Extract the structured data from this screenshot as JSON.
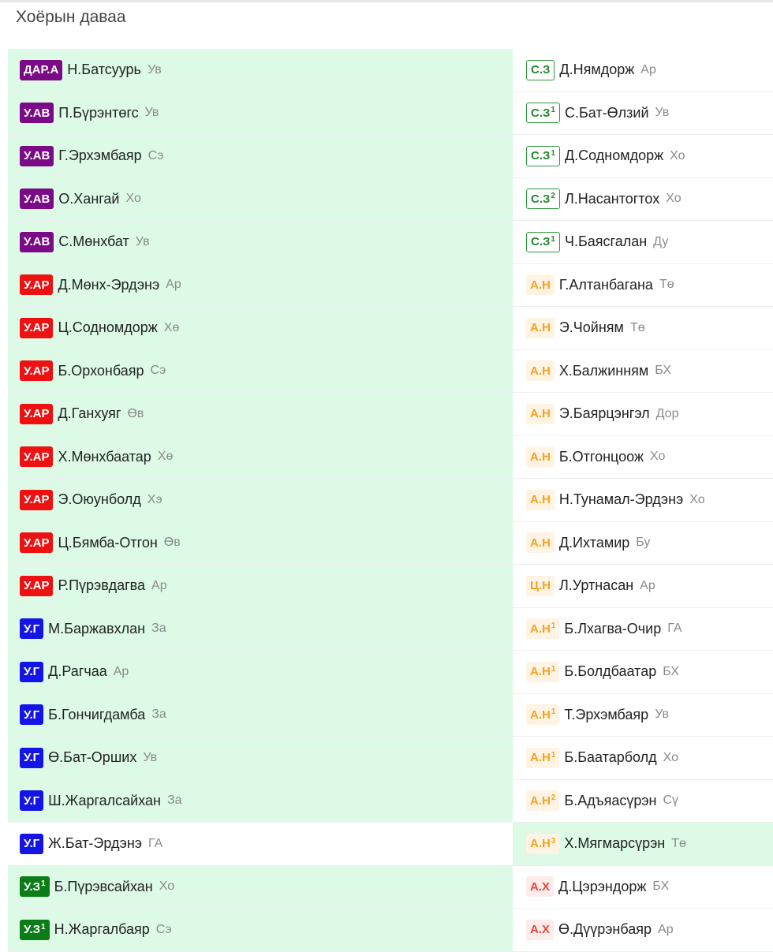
{
  "title": "Хоёрын даваа",
  "colors": {
    "row_green": "#dcfae6",
    "purple": "#7b0a87",
    "red": "#ee1111",
    "blue": "#1414e6",
    "green": "#0b7d16",
    "orange": "#f5a21e",
    "outline_green": "#1f8a2a",
    "light_red": "#e8443a"
  },
  "left": [
    {
      "badge": "ДАР.А",
      "sup": "",
      "name": "Н.Батсуурь",
      "region": "Ув",
      "style": "purple",
      "highlight": true
    },
    {
      "badge": "У.АВ",
      "sup": "",
      "name": "П.Бүрэнтөгс",
      "region": "Ув",
      "style": "purple",
      "highlight": true
    },
    {
      "badge": "У.АВ",
      "sup": "",
      "name": "Г.Эрхэмбаяр",
      "region": "Сэ",
      "style": "purple",
      "highlight": true
    },
    {
      "badge": "У.АВ",
      "sup": "",
      "name": "О.Хангай",
      "region": "Хо",
      "style": "purple",
      "highlight": true
    },
    {
      "badge": "У.АВ",
      "sup": "",
      "name": "С.Мөнхбат",
      "region": "Ув",
      "style": "purple",
      "highlight": true
    },
    {
      "badge": "У.АР",
      "sup": "",
      "name": "Д.Мөнх-Эрдэнэ",
      "region": "Ар",
      "style": "red",
      "highlight": true
    },
    {
      "badge": "У.АР",
      "sup": "",
      "name": "Ц.Содномдорж",
      "region": "Хө",
      "style": "red",
      "highlight": true
    },
    {
      "badge": "У.АР",
      "sup": "",
      "name": "Б.Орхонбаяр",
      "region": "Сэ",
      "style": "red",
      "highlight": true
    },
    {
      "badge": "У.АР",
      "sup": "",
      "name": "Д.Ганхуяг",
      "region": "Өв",
      "style": "red",
      "highlight": true
    },
    {
      "badge": "У.АР",
      "sup": "",
      "name": "Х.Мөнхбаатар",
      "region": "Хө",
      "style": "red",
      "highlight": true
    },
    {
      "badge": "У.АР",
      "sup": "",
      "name": "Э.Оюунболд",
      "region": "Хэ",
      "style": "red",
      "highlight": true
    },
    {
      "badge": "У.АР",
      "sup": "",
      "name": "Ц.Бямба-Отгон",
      "region": "Өв",
      "style": "red",
      "highlight": true
    },
    {
      "badge": "У.АР",
      "sup": "",
      "name": "Р.Пүрэвдагва",
      "region": "Ар",
      "style": "red",
      "highlight": true
    },
    {
      "badge": "У.Г",
      "sup": "",
      "name": "М.Баржавхлан",
      "region": "За",
      "style": "blue",
      "highlight": true
    },
    {
      "badge": "У.Г",
      "sup": "",
      "name": "Д.Рагчаа",
      "region": "Ар",
      "style": "blue",
      "highlight": true
    },
    {
      "badge": "У.Г",
      "sup": "",
      "name": "Б.Гончигдамба",
      "region": "За",
      "style": "blue",
      "highlight": true
    },
    {
      "badge": "У.Г",
      "sup": "",
      "name": "Ө.Бат-Орших",
      "region": "Ув",
      "style": "blue",
      "highlight": true
    },
    {
      "badge": "У.Г",
      "sup": "",
      "name": "Ш.Жаргалсайхан",
      "region": "За",
      "style": "blue",
      "highlight": true
    },
    {
      "badge": "У.Г",
      "sup": "",
      "name": "Ж.Бат-Эрдэнэ",
      "region": "ГА",
      "style": "blue",
      "highlight": false
    },
    {
      "badge": "У.З",
      "sup": "1",
      "name": "Б.Пүрэвсайхан",
      "region": "Хо",
      "style": "green",
      "highlight": true
    },
    {
      "badge": "У.З",
      "sup": "1",
      "name": "Н.Жаргалбаяр",
      "region": "Сэ",
      "style": "green",
      "highlight": true
    }
  ],
  "right": [
    {
      "badge": "С.З",
      "sup": "",
      "name": "Д.Нямдорж",
      "region": "Ар",
      "style": "outline",
      "highlight": false
    },
    {
      "badge": "С.З",
      "sup": "1",
      "name": "С.Бат-Өлзий",
      "region": "Ув",
      "style": "outline",
      "highlight": false
    },
    {
      "badge": "С.З",
      "sup": "1",
      "name": "Д.Содномдорж",
      "region": "Хо",
      "style": "outline",
      "highlight": false
    },
    {
      "badge": "С.З",
      "sup": "2",
      "name": "Л.Насантогтох",
      "region": "Хо",
      "style": "outline",
      "highlight": false
    },
    {
      "badge": "С.З",
      "sup": "1",
      "name": "Ч.Баясгалан",
      "region": "Ду",
      "style": "outline",
      "highlight": false
    },
    {
      "badge": "А.Н",
      "sup": "",
      "name": "Г.Алтанбагана",
      "region": "Тө",
      "style": "orange",
      "highlight": false
    },
    {
      "badge": "А.Н",
      "sup": "",
      "name": "Э.Чойням",
      "region": "Тө",
      "style": "orange",
      "highlight": false
    },
    {
      "badge": "А.Н",
      "sup": "",
      "name": "Х.Балжинням",
      "region": "БХ",
      "style": "orange",
      "highlight": false
    },
    {
      "badge": "А.Н",
      "sup": "",
      "name": "Э.Баярцэнгэл",
      "region": "Дор",
      "style": "orange",
      "highlight": false
    },
    {
      "badge": "А.Н",
      "sup": "",
      "name": "Б.Отгонцоож",
      "region": "Хо",
      "style": "orange",
      "highlight": false
    },
    {
      "badge": "А.Н",
      "sup": "",
      "name": "Н.Тунамал-Эрдэнэ",
      "region": "Хо",
      "style": "orange",
      "highlight": false
    },
    {
      "badge": "А.Н",
      "sup": "",
      "name": "Д.Ихтамир",
      "region": "Бу",
      "style": "orange",
      "highlight": false
    },
    {
      "badge": "Ц.Н",
      "sup": "",
      "name": "Л.Уртнасан",
      "region": "Ар",
      "style": "orange",
      "highlight": false
    },
    {
      "badge": "А.Н",
      "sup": "1",
      "name": "Б.Лхагва-Очир",
      "region": "ГА",
      "style": "orange",
      "highlight": false
    },
    {
      "badge": "А.Н",
      "sup": "1",
      "name": "Б.Болдбаатар",
      "region": "БХ",
      "style": "orange",
      "highlight": false
    },
    {
      "badge": "А.Н",
      "sup": "1",
      "name": "Т.Эрхэмбаяр",
      "region": "Ув",
      "style": "orange",
      "highlight": false
    },
    {
      "badge": "А.Н",
      "sup": "1",
      "name": "Б.Баатарболд",
      "region": "Хо",
      "style": "orange",
      "highlight": false
    },
    {
      "badge": "А.Н",
      "sup": "2",
      "name": "Б.Адъяасүрэн",
      "region": "Сү",
      "style": "orange",
      "highlight": false
    },
    {
      "badge": "А.Н",
      "sup": "3",
      "name": "Х.Мягмарсүрэн",
      "region": "Тө",
      "style": "orange",
      "highlight": true
    },
    {
      "badge": "А.Х",
      "sup": "",
      "name": "Д.Цэрэндорж",
      "region": "БХ",
      "style": "redlight",
      "highlight": false
    },
    {
      "badge": "А.Х",
      "sup": "",
      "name": "Ө.Дүүрэнбаяр",
      "region": "Ар",
      "style": "redlight",
      "highlight": false
    }
  ]
}
